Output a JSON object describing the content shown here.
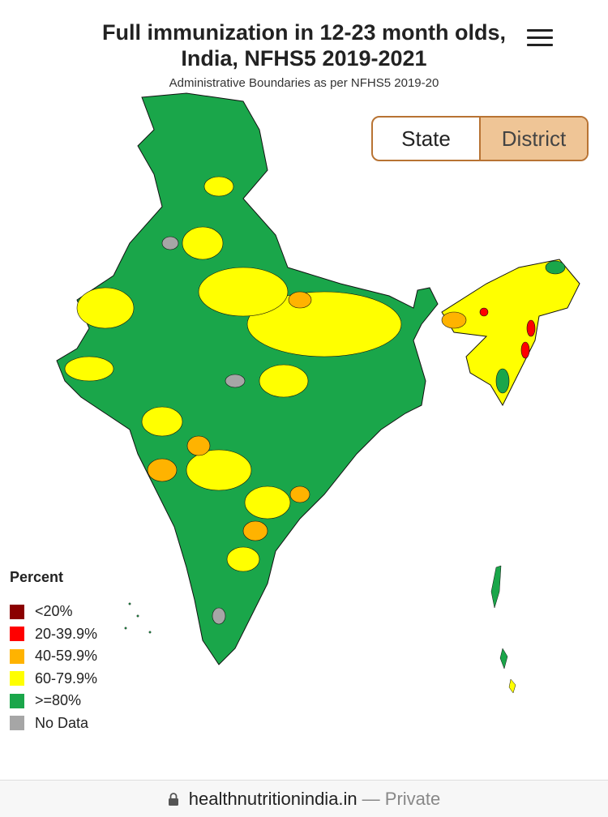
{
  "header": {
    "title": "Full immunization in 12-23 month olds, India, NFHS5 2019-2021",
    "subtitle": "Administrative Boundaries as per NFHS5 2019-20"
  },
  "toggle": {
    "options": [
      "State",
      "District"
    ],
    "active": 1
  },
  "legend": {
    "title": "Percent",
    "items": [
      {
        "label": "<20%",
        "color": "#8b0000"
      },
      {
        "label": "20-39.9%",
        "color": "#ff0000"
      },
      {
        "label": "40-59.9%",
        "color": "#ffb300"
      },
      {
        "label": "60-79.9%",
        "color": "#ffff00"
      },
      {
        "label": ">=80%",
        "color": "#1aa64a"
      },
      {
        "label": "No Data",
        "color": "#a6a6a6"
      }
    ]
  },
  "footer": {
    "url": "healthnutritionindia.in",
    "status": "— Private"
  }
}
